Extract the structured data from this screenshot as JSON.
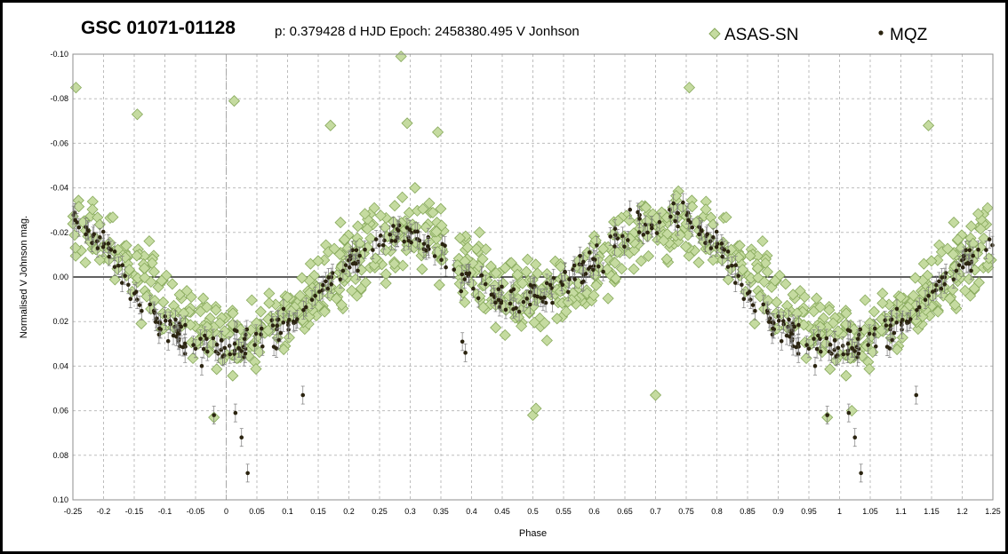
{
  "chart_data": {
    "type": "scatter",
    "title": "GSC 01071-01128",
    "subtitle": "p: 0.379428 d  HJD Epoch: 2458380.495  V Jonhson",
    "xlabel": "Phase",
    "ylabel": "Normalised  V Johnson mag.",
    "xlim": [
      -0.25,
      1.25
    ],
    "ylim": [
      0.1,
      -0.1
    ],
    "y_axis_inverted": true,
    "x_ticks": [
      "-0.25",
      "-0.2",
      "-0.15",
      "-0.1",
      "-0.05",
      "0",
      "0.05",
      "0.1",
      "0.15",
      "0.2",
      "0.25",
      "0.3",
      "0.35",
      "0.4",
      "0.45",
      "0.5",
      "0.55",
      "0.6",
      "0.65",
      "0.7",
      "0.75",
      "0.8",
      "0.85",
      "0.9",
      "0.95",
      "1",
      "1.05",
      "1.1",
      "1.15",
      "1.2",
      "1.25"
    ],
    "y_ticks": [
      "-0.10",
      "-0.08",
      "-0.06",
      "-0.04",
      "-0.02",
      "0.00",
      "0.02",
      "0.04",
      "0.06",
      "0.08",
      "0.10"
    ],
    "grid": true,
    "legend_position": "top-right",
    "colors": {
      "asassn_fill": "#c5dba0",
      "asassn_edge": "#86a85a",
      "mqz": "#2b2410",
      "grid": "#bdbdbd",
      "zero_line": "#000000",
      "phase_zero_line": "#a8a8a8"
    },
    "series": [
      {
        "name": "ASAS-SN",
        "marker": "diamond",
        "curve_x": [
          0.0,
          0.05,
          0.1,
          0.15,
          0.2,
          0.25,
          0.3,
          0.35,
          0.4,
          0.45,
          0.5,
          0.55,
          0.6,
          0.65,
          0.7,
          0.75,
          0.8,
          0.85,
          0.9,
          0.95,
          1.0
        ],
        "curve_y": [
          0.03,
          0.026,
          0.018,
          0.008,
          -0.006,
          -0.016,
          -0.02,
          -0.017,
          -0.004,
          0.006,
          0.01,
          0.006,
          -0.004,
          -0.014,
          -0.022,
          -0.024,
          -0.018,
          -0.006,
          0.012,
          0.024,
          0.03
        ],
        "scatter_range_mag": 0.03,
        "notable_points": [
          {
            "x": -0.245,
            "y": -0.085
          },
          {
            "x": 0.285,
            "y": -0.099
          },
          {
            "x": 0.755,
            "y": -0.085
          },
          {
            "x": 0.013,
            "y": -0.079
          },
          {
            "x": -0.145,
            "y": -0.073
          },
          {
            "x": 0.345,
            "y": -0.065
          },
          {
            "x": 0.17,
            "y": -0.068
          },
          {
            "x": 0.295,
            "y": -0.069
          },
          {
            "x": 1.145,
            "y": -0.068
          },
          {
            "x": 0.5,
            "y": 0.062
          },
          {
            "x": 0.505,
            "y": 0.059
          },
          {
            "x": 0.7,
            "y": 0.053
          },
          {
            "x": -0.02,
            "y": 0.063
          },
          {
            "x": 0.98,
            "y": 0.063
          },
          {
            "x": 1.02,
            "y": 0.06
          }
        ]
      },
      {
        "name": "MQZ",
        "marker": "dot",
        "curve_x": [
          0.0,
          0.05,
          0.1,
          0.15,
          0.2,
          0.25,
          0.3,
          0.35,
          0.4,
          0.45,
          0.5,
          0.55,
          0.6,
          0.65,
          0.7,
          0.75,
          0.8,
          0.85,
          0.9,
          0.95,
          1.0
        ],
        "curve_y": [
          0.032,
          0.03,
          0.02,
          0.006,
          -0.008,
          -0.016,
          -0.017,
          -0.012,
          0.002,
          0.012,
          0.008,
          0.002,
          -0.006,
          -0.02,
          -0.026,
          -0.027,
          -0.016,
          0.008,
          0.022,
          0.03,
          0.032
        ],
        "scatter_range_mag": 0.012,
        "error_bar_mag": 0.004,
        "notable_points": [
          {
            "x": 0.035,
            "y": 0.088
          },
          {
            "x": 0.025,
            "y": 0.072
          },
          {
            "x": 0.125,
            "y": 0.053
          },
          {
            "x": -0.02,
            "y": 0.062
          },
          {
            "x": 0.015,
            "y": 0.061
          },
          {
            "x": 0.385,
            "y": 0.029
          },
          {
            "x": 0.39,
            "y": 0.034
          },
          {
            "x": 1.035,
            "y": 0.088
          },
          {
            "x": 1.025,
            "y": 0.072
          },
          {
            "x": 1.125,
            "y": 0.053
          },
          {
            "x": 0.98,
            "y": 0.062
          },
          {
            "x": 1.015,
            "y": 0.061
          }
        ]
      }
    ]
  }
}
